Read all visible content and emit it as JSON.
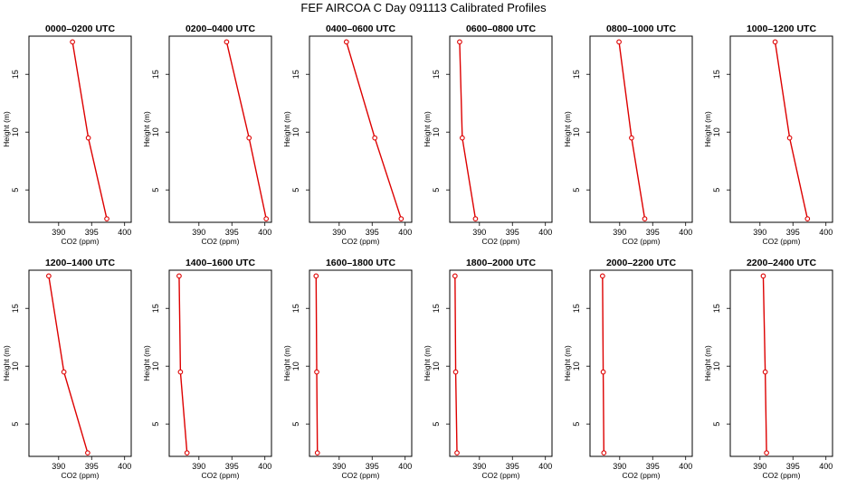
{
  "title": "FEF AIRCOA C  Day 091113  Calibrated Profiles",
  "chart_data": {
    "type": "line",
    "xlabel": "CO2 (ppm)",
    "ylabel": "Height (m)",
    "ylim": [
      2.2,
      18.3
    ],
    "yticks": [
      5,
      10,
      15
    ],
    "line_color": "#dd0000",
    "panels": [
      {
        "title": "0000–0200 UTC",
        "xlim": [
          385.5,
          401
        ],
        "xticks": [
          390,
          395,
          400
        ],
        "x": [
          397.3,
          394.5,
          392.1
        ],
        "y": [
          2.5,
          9.5,
          17.8
        ]
      },
      {
        "title": "0200–0400 UTC",
        "xlim": [
          385.5,
          401
        ],
        "xticks": [
          390,
          395,
          400
        ],
        "x": [
          400.2,
          397.6,
          394.2
        ],
        "y": [
          2.5,
          9.5,
          17.8
        ]
      },
      {
        "title": "0400–0600 UTC",
        "xlim": [
          385.5,
          401
        ],
        "xticks": [
          390,
          395,
          400
        ],
        "x": [
          399.4,
          395.4,
          391.1
        ],
        "y": [
          2.5,
          9.5,
          17.8
        ]
      },
      {
        "title": "0600–0800 UTC",
        "xlim": [
          385.5,
          401
        ],
        "xticks": [
          390,
          395,
          400
        ],
        "x": [
          389.4,
          387.4,
          387.0
        ],
        "y": [
          2.5,
          9.5,
          17.8
        ]
      },
      {
        "title": "0800–1000 UTC",
        "xlim": [
          385.5,
          401
        ],
        "xticks": [
          390,
          395,
          400
        ],
        "x": [
          393.8,
          391.8,
          389.9
        ],
        "y": [
          2.5,
          9.5,
          17.8
        ]
      },
      {
        "title": "1000–1200 UTC",
        "xlim": [
          385.5,
          401
        ],
        "xticks": [
          390,
          395,
          400
        ],
        "x": [
          397.2,
          394.5,
          392.3
        ],
        "y": [
          2.5,
          9.5,
          17.8
        ]
      },
      {
        "title": "1200–1400 UTC",
        "xlim": [
          385.5,
          401
        ],
        "xticks": [
          390,
          395,
          400
        ],
        "x": [
          394.4,
          390.8,
          388.5
        ],
        "y": [
          2.5,
          9.5,
          17.8
        ]
      },
      {
        "title": "1400–1600 UTC",
        "xlim": [
          385.5,
          401
        ],
        "xticks": [
          390,
          395,
          400
        ],
        "x": [
          388.2,
          387.2,
          387.0
        ],
        "y": [
          2.5,
          9.5,
          17.8
        ]
      },
      {
        "title": "1600–1800 UTC",
        "xlim": [
          385.5,
          401
        ],
        "xticks": [
          390,
          395,
          400
        ],
        "x": [
          386.7,
          386.6,
          386.5
        ],
        "y": [
          2.5,
          9.5,
          17.8
        ]
      },
      {
        "title": "1800–2000 UTC",
        "xlim": [
          385.5,
          401
        ],
        "xticks": [
          390,
          395,
          400
        ],
        "x": [
          386.6,
          386.4,
          386.3
        ],
        "y": [
          2.5,
          9.5,
          17.8
        ]
      },
      {
        "title": "2000–2200 UTC",
        "xlim": [
          385.5,
          401
        ],
        "xticks": [
          390,
          395,
          400
        ],
        "x": [
          387.6,
          387.5,
          387.4
        ],
        "y": [
          2.5,
          9.5,
          17.8
        ]
      },
      {
        "title": "2200–2400 UTC",
        "xlim": [
          385.5,
          401
        ],
        "xticks": [
          390,
          395,
          400
        ],
        "x": [
          391.0,
          390.8,
          390.5
        ],
        "y": [
          2.5,
          9.5,
          17.8
        ]
      }
    ]
  }
}
